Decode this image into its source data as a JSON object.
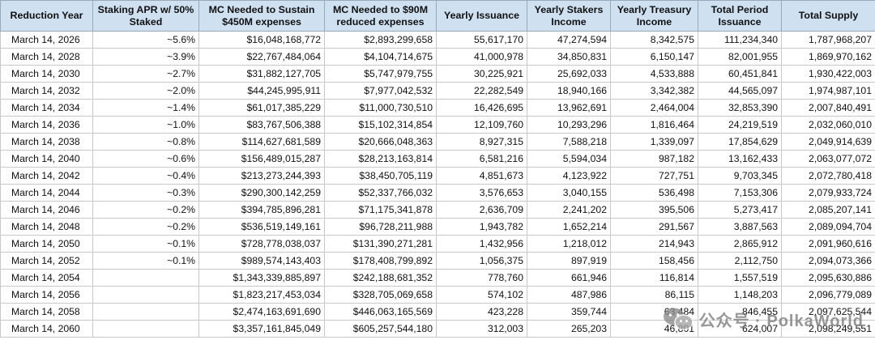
{
  "table": {
    "headers": [
      "Reduction Year",
      "Staking APR w/ 50% Staked",
      "MC Needed to Sustain $450M expenses",
      "MC Needed to $90M reduced expenses",
      "Yearly Issuance",
      "Yearly Stakers Income",
      "Yearly Treasury Income",
      "Total Period Issuance",
      "Total Supply"
    ],
    "rows": [
      [
        "March 14, 2026",
        "~5.6%",
        "$16,048,168,772",
        "$2,893,299,658",
        "55,617,170",
        "47,274,594",
        "8,342,575",
        "111,234,340",
        "1,787,968,207"
      ],
      [
        "March 14, 2028",
        "~3.9%",
        "$22,767,484,064",
        "$4,104,714,675",
        "41,000,978",
        "34,850,831",
        "6,150,147",
        "82,001,955",
        "1,869,970,162"
      ],
      [
        "March 14, 2030",
        "~2.7%",
        "$31,882,127,705",
        "$5,747,979,755",
        "30,225,921",
        "25,692,033",
        "4,533,888",
        "60,451,841",
        "1,930,422,003"
      ],
      [
        "March 14, 2032",
        "~2.0%",
        "$44,245,995,911",
        "$7,977,042,532",
        "22,282,549",
        "18,940,166",
        "3,342,382",
        "44,565,097",
        "1,974,987,101"
      ],
      [
        "March 14, 2034",
        "~1.4%",
        "$61,017,385,229",
        "$11,000,730,510",
        "16,426,695",
        "13,962,691",
        "2,464,004",
        "32,853,390",
        "2,007,840,491"
      ],
      [
        "March 14, 2036",
        "~1.0%",
        "$83,767,506,388",
        "$15,102,314,854",
        "12,109,760",
        "10,293,296",
        "1,816,464",
        "24,219,519",
        "2,032,060,010"
      ],
      [
        "March 14, 2038",
        "~0.8%",
        "$114,627,681,589",
        "$20,666,048,363",
        "8,927,315",
        "7,588,218",
        "1,339,097",
        "17,854,629",
        "2,049,914,639"
      ],
      [
        "March 14, 2040",
        "~0.6%",
        "$156,489,015,287",
        "$28,213,163,814",
        "6,581,216",
        "5,594,034",
        "987,182",
        "13,162,433",
        "2,063,077,072"
      ],
      [
        "March 14, 2042",
        "~0.4%",
        "$213,273,244,393",
        "$38,450,705,119",
        "4,851,673",
        "4,123,922",
        "727,751",
        "9,703,345",
        "2,072,780,418"
      ],
      [
        "March 14, 2044",
        "~0.3%",
        "$290,300,142,259",
        "$52,337,766,032",
        "3,576,653",
        "3,040,155",
        "536,498",
        "7,153,306",
        "2,079,933,724"
      ],
      [
        "March 14, 2046",
        "~0.2%",
        "$394,785,896,281",
        "$71,175,341,878",
        "2,636,709",
        "2,241,202",
        "395,506",
        "5,273,417",
        "2,085,207,141"
      ],
      [
        "March 14, 2048",
        "~0.2%",
        "$536,519,149,161",
        "$96,728,211,988",
        "1,943,782",
        "1,652,214",
        "291,567",
        "3,887,563",
        "2,089,094,704"
      ],
      [
        "March 14, 2050",
        "~0.1%",
        "$728,778,038,037",
        "$131,390,271,281",
        "1,432,956",
        "1,218,012",
        "214,943",
        "2,865,912",
        "2,091,960,616"
      ],
      [
        "March 14, 2052",
        "~0.1%",
        "$989,574,143,403",
        "$178,408,799,892",
        "1,056,375",
        "897,919",
        "158,456",
        "2,112,750",
        "2,094,073,366"
      ],
      [
        "March 14, 2054",
        "",
        "$1,343,339,885,897",
        "$242,188,681,352",
        "778,760",
        "661,946",
        "116,814",
        "1,557,519",
        "2,095,630,886"
      ],
      [
        "March 14, 2056",
        "",
        "$1,823,217,453,034",
        "$328,705,069,658",
        "574,102",
        "487,986",
        "86,115",
        "1,148,203",
        "2,096,779,089"
      ],
      [
        "March 14, 2058",
        "",
        "$2,474,163,691,690",
        "$446,063,165,569",
        "423,228",
        "359,744",
        "63,484",
        "846,455",
        "2,097,625,544"
      ],
      [
        "March 14, 2060",
        "",
        "$3,357,161,845,049",
        "$605,257,544,180",
        "312,003",
        "265,203",
        "46,801",
        "624,007",
        "2,098,249,551"
      ]
    ]
  },
  "watermark": {
    "text": "公众号 · PolkaWorld",
    "icon": "wechat-icon"
  }
}
